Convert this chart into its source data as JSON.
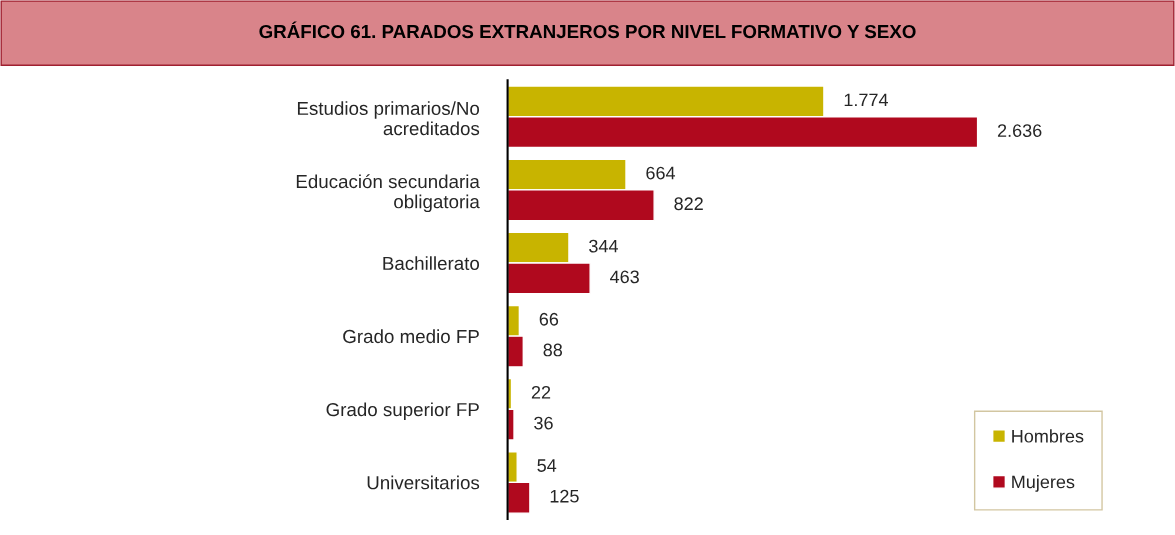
{
  "chart_data": {
    "type": "bar",
    "orientation": "horizontal",
    "title": "GRÁFICO 61. PARADOS EXTRANJEROS POR NIVEL FORMATIVO Y SEXO",
    "categories": [
      "Estudios primarios/No acreditados",
      "Educación secundaria obligatoria",
      "Bachillerato",
      "Grado medio FP",
      "Grado superior FP",
      "Universitarios"
    ],
    "series": [
      {
        "name": "Hombres",
        "color": "#c8b400",
        "values": [
          1774,
          664,
          344,
          66,
          22,
          54
        ],
        "value_labels": [
          "1.774",
          "664",
          "344",
          "66",
          "22",
          "54"
        ]
      },
      {
        "name": "Mujeres",
        "color": "#b0091e",
        "values": [
          2636,
          822,
          463,
          88,
          36,
          125
        ],
        "value_labels": [
          "2.636",
          "822",
          "463",
          "88",
          "36",
          "125"
        ]
      }
    ],
    "legend": "bottom right",
    "grid": false
  }
}
